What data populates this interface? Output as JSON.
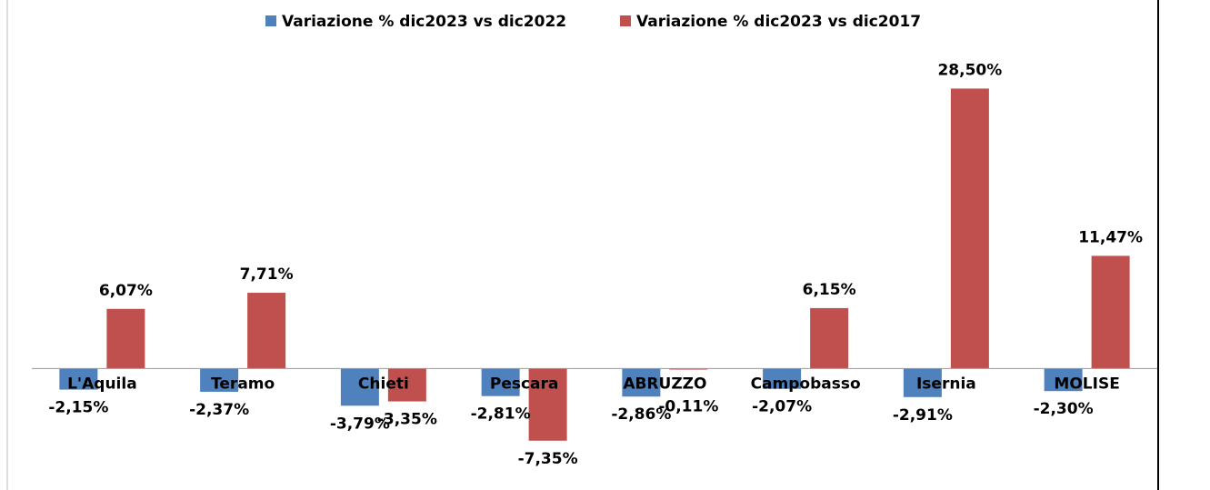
{
  "chart_data": {
    "type": "bar",
    "categories": [
      "L'Aquila",
      "Teramo",
      "Chieti",
      "Pescara",
      "ABRUZZO",
      "Campobasso",
      "Isernia",
      "MOLISE"
    ],
    "series": [
      {
        "name": "Variazione % dic2023 vs dic2022",
        "color": "#4f81bd",
        "values": [
          -2.15,
          -2.37,
          -3.79,
          -2.81,
          -2.86,
          -2.07,
          -2.91,
          -2.3
        ],
        "value_labels": [
          "-2,15%",
          "-2,37%",
          "-3,79%",
          "-2,81%",
          "-2,86%",
          "-2,07%",
          "-2,91%",
          "-2,30%"
        ]
      },
      {
        "name": "Variazione % dic2023 vs dic2017",
        "color": "#c0504d",
        "values": [
          6.07,
          7.71,
          -3.35,
          -7.35,
          -0.11,
          6.15,
          28.5,
          11.47
        ],
        "value_labels": [
          "6,07%",
          "7,71%",
          "-3,35%",
          "-7,35%",
          "-0,11%",
          "6,15%",
          "28,50%",
          "11,47%"
        ]
      }
    ],
    "ylim": [
      -12,
      34
    ],
    "legend": "top"
  }
}
